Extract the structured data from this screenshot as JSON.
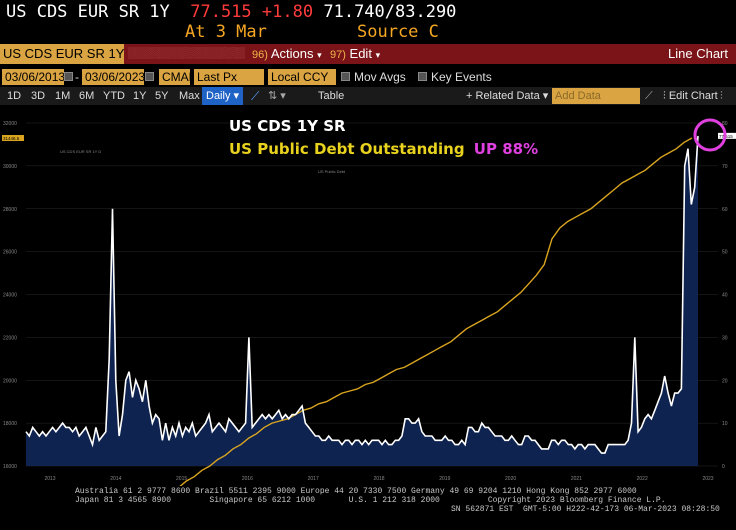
{
  "header": {
    "ticker": "US CDS EUR SR 1Y",
    "last": "77.515",
    "change": "+1.80",
    "range": "71.740/83.290",
    "at": "At 3 Mar",
    "source": "Source C"
  },
  "toolbar1": {
    "ticker_field": "US CDS EUR SR 1Y D",
    "actions_num": "96)",
    "actions": "Actions",
    "edit_num": "97)",
    "edit": "Edit",
    "chart_type": "Line Chart"
  },
  "toolbar2": {
    "start_date": "03/06/2013",
    "end_date": "03/06/2023",
    "cman": "CMAN",
    "price": "Last Px",
    "ccy": "Local CCY",
    "mov_avgs": "Mov Avgs",
    "key_events": "Key Events"
  },
  "toolbar3": {
    "periods": [
      "1D",
      "3D",
      "1M",
      "6M",
      "YTD",
      "1Y",
      "5Y",
      "Max"
    ],
    "frequency": "Daily",
    "table": "Table",
    "related": "Related Data",
    "add_data": "Add Data",
    "edit_chart": "Edit Chart"
  },
  "annotation": {
    "title": "US CDS 1Y SR",
    "debt_label": "US Public Debt Outstanding",
    "debt_change": "UP 88%",
    "highlight_color": "#e040e0"
  },
  "colors": {
    "cds_fill": "#0f2350",
    "cds_line": "#ffffff",
    "debt_line": "#d9a520",
    "label_yellow": "#e8d21e",
    "label_magenta": "#e040e0"
  },
  "chart_data": {
    "type": "area",
    "series": [
      {
        "axis": "right",
        "values": [
          8,
          7,
          9,
          8,
          7,
          8,
          7,
          8,
          9,
          8,
          9,
          10,
          9,
          9,
          8,
          9,
          7,
          8,
          9,
          7,
          5,
          9,
          6,
          7,
          8,
          25,
          60,
          20,
          7,
          12,
          20,
          22,
          16,
          20,
          18,
          15,
          20,
          14,
          10,
          12,
          11,
          6,
          10,
          6,
          9,
          7,
          10,
          7,
          9,
          8,
          10,
          7,
          8,
          9,
          10,
          12,
          8,
          9,
          10,
          9,
          8,
          11,
          10,
          9,
          8,
          9,
          10,
          30,
          9,
          10,
          11,
          12,
          11,
          12,
          11,
          12,
          13,
          11,
          12,
          11,
          12,
          12,
          13,
          14,
          10,
          9,
          8,
          7,
          7,
          6,
          6,
          7,
          6,
          6,
          6,
          5,
          6,
          6,
          5,
          6,
          6,
          5,
          6,
          5,
          6,
          6,
          6,
          5,
          6,
          5,
          5,
          6,
          6,
          7,
          11,
          11,
          10,
          10,
          11,
          8,
          7,
          7,
          7,
          6,
          6,
          6,
          7,
          6,
          6,
          5,
          5,
          6,
          5,
          9,
          9,
          8,
          8,
          10,
          9,
          9,
          8,
          7,
          7,
          7,
          6,
          6,
          7,
          6,
          5,
          5,
          7,
          7,
          6,
          6,
          5,
          4,
          4,
          4,
          6,
          6,
          5,
          6,
          6,
          5,
          5,
          4,
          5,
          5,
          4,
          5,
          5,
          5,
          4,
          3,
          3,
          5,
          5,
          5,
          5,
          5,
          5,
          6,
          10,
          30,
          8,
          9,
          11,
          12,
          11,
          13,
          15,
          17,
          21,
          17,
          14,
          17,
          17,
          18,
          70,
          74,
          61,
          65,
          77
        ]
      },
      {
        "values": [
          13,
          13,
          13,
          13,
          13,
          13,
          13,
          13,
          13,
          13,
          13,
          13,
          14,
          14.5,
          14.8,
          15,
          15.3,
          15.5,
          15.8,
          16,
          16.3,
          16.5,
          16.8,
          17,
          17.3,
          17.5,
          17.8,
          18,
          18.1,
          18.2,
          18.4,
          18.6,
          18.7,
          18.9,
          19,
          19.2,
          19.4,
          19.5,
          19.6,
          19.8,
          19.9,
          20.1,
          20.3,
          20.5,
          20.6,
          20.8,
          21,
          21.2,
          21.4,
          21.6,
          21.8,
          22.1,
          22.4,
          22.6,
          22.8,
          23,
          23.2,
          23.5,
          23.8,
          24.1,
          24.5,
          24.9,
          25.4,
          26.6,
          27.1,
          27.4,
          27.6,
          27.8,
          28,
          28.3,
          28.6,
          28.9,
          29.2,
          29.4,
          29.6,
          29.8,
          30.1,
          30.4,
          30.6,
          30.8,
          31.1,
          31.3
        ]
      }
    ],
    "x_tick_labels": [
      "2013",
      "2014",
      "2015",
      "2016",
      "2017",
      "2018",
      "2019",
      "2020",
      "2021",
      "2022",
      "2023"
    ],
    "left_ticks": [
      "16000",
      "18000",
      "20000",
      "22000",
      "24000",
      "26000",
      "28000",
      "30000",
      "32000"
    ],
    "right_ticks": [
      "0",
      "10",
      "20",
      "30",
      "40",
      "50",
      "60",
      "70",
      "80"
    ],
    "debt_last_label": "31446.5",
    "cds_last_label": "77.515",
    "right_ylim": [
      0,
      80
    ],
    "left_ylim": [
      16000,
      32000
    ],
    "legend_tags": [
      "US CDS EUR SR 1Y D",
      "US Public Debt"
    ]
  },
  "footer": {
    "line1": "Australia 61 2 9777 8600 Brazil 5511 2395 9000 Europe 44 20 7330 7500 Germany 49 69 9204 1210 Hong Kong 852 2977 6000",
    "line2": "Japan 81 3 4565 8900        Singapore 65 6212 1000       U.S. 1 212 318 2000          Copyright 2023 Bloomberg Finance L.P.",
    "line3": "SN 562871 EST  GMT-5:00 H222-42-173 06-Mar-2023 08:28:50"
  }
}
